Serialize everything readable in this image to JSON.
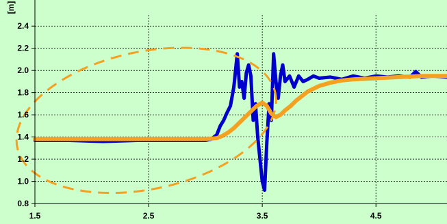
{
  "chart_data": {
    "type": "line",
    "unit_label": "[m]",
    "xlim": [
      1.5,
      5.125
    ],
    "ylim": [
      0.8,
      2.5
    ],
    "x_ticks": [
      {
        "value": 1.5,
        "label": "1.5"
      },
      {
        "value": 2.5,
        "label": "2.5"
      },
      {
        "value": 3.5,
        "label": "3.5"
      },
      {
        "value": 4.5,
        "label": "4.5"
      }
    ],
    "y_ticks": [
      {
        "value": 0.8,
        "label": "0.8"
      },
      {
        "value": 1.0,
        "label": "1.0"
      },
      {
        "value": 1.2,
        "label": "1.2"
      },
      {
        "value": 1.4,
        "label": "1.4"
      },
      {
        "value": 1.6,
        "label": "1.6"
      },
      {
        "value": 1.8,
        "label": "1.8"
      },
      {
        "value": 2.0,
        "label": "2.0"
      },
      {
        "value": 2.2,
        "label": "2.2"
      },
      {
        "value": 2.4,
        "label": "2.4"
      }
    ],
    "grid": {
      "vertical": true,
      "horizontal": true,
      "style": "dotted"
    },
    "series": [
      {
        "color": "#0000cc",
        "x": [
          1.5,
          1.8,
          2.1,
          2.4,
          2.7,
          3.0,
          3.05,
          3.1,
          3.13,
          3.16,
          3.19,
          3.22,
          3.25,
          3.28,
          3.3,
          3.32,
          3.34,
          3.36,
          3.38,
          3.4,
          3.42,
          3.44,
          3.46,
          3.48,
          3.5,
          3.52,
          3.54,
          3.56,
          3.58,
          3.6,
          3.62,
          3.64,
          3.66,
          3.68,
          3.7,
          3.74,
          3.78,
          3.82,
          3.86,
          3.9,
          3.95,
          4.0,
          4.1,
          4.2,
          4.3,
          4.4,
          4.5,
          4.6,
          4.7,
          4.8,
          4.85,
          4.9,
          5.0,
          5.125
        ],
        "y": [
          1.37,
          1.37,
          1.36,
          1.37,
          1.37,
          1.37,
          1.38,
          1.42,
          1.5,
          1.55,
          1.62,
          1.68,
          1.85,
          2.15,
          1.85,
          1.9,
          1.75,
          1.98,
          2.05,
          1.95,
          1.55,
          1.7,
          1.4,
          1.2,
          1.0,
          0.92,
          1.35,
          1.7,
          1.55,
          2.15,
          1.9,
          1.75,
          1.95,
          2.05,
          1.9,
          1.95,
          1.85,
          1.95,
          1.9,
          1.92,
          1.95,
          1.93,
          1.94,
          1.92,
          1.95,
          1.93,
          1.95,
          1.94,
          1.95,
          1.94,
          1.99,
          1.94,
          1.95,
          1.94
        ]
      },
      {
        "color": "#f4a020",
        "x": [
          1.5,
          2.0,
          2.5,
          3.0,
          3.1,
          3.15,
          3.2,
          3.25,
          3.3,
          3.35,
          3.4,
          3.45,
          3.5,
          3.54,
          3.58,
          3.62,
          3.66,
          3.7,
          3.75,
          3.8,
          3.85,
          3.9,
          4.0,
          4.1,
          4.2,
          4.3,
          4.5,
          4.7,
          4.9,
          5.125
        ],
        "y": [
          1.38,
          1.38,
          1.38,
          1.38,
          1.39,
          1.41,
          1.44,
          1.48,
          1.53,
          1.58,
          1.63,
          1.68,
          1.71,
          1.68,
          1.61,
          1.58,
          1.6,
          1.64,
          1.68,
          1.73,
          1.77,
          1.81,
          1.86,
          1.89,
          1.91,
          1.92,
          1.93,
          1.94,
          1.95,
          1.95
        ]
      }
    ],
    "annotations": [
      {
        "type": "ellipse",
        "style": "dashed",
        "color": "#f4a020",
        "cx": 2.48,
        "cy": 1.55,
        "rx": 1.16,
        "ry": 0.62,
        "rotation_deg": -12
      }
    ]
  }
}
